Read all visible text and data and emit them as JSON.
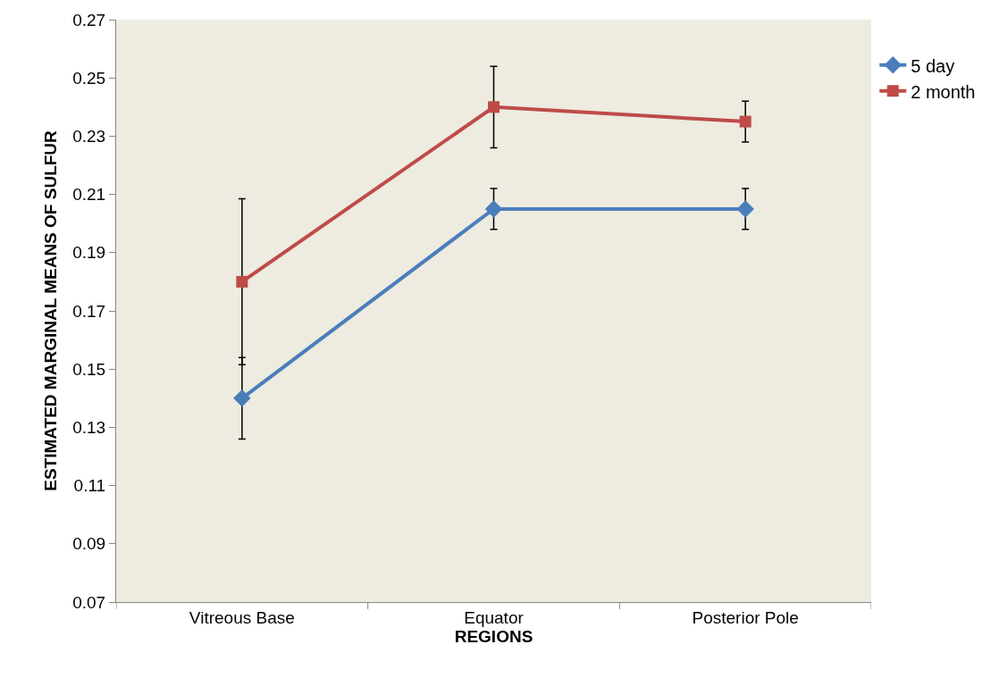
{
  "chart_data": {
    "type": "line",
    "xlabel": "REGIONS",
    "ylabel": "ESTIMATED MARGINAL MEANS OF SULFUR",
    "categories": [
      "Vitreous Base",
      "Equator",
      "Posterior Pole"
    ],
    "series": [
      {
        "name": "5 day",
        "color": "#4a7ebb",
        "marker": "diamond",
        "values": [
          0.14,
          0.205,
          0.205
        ],
        "errors": [
          0.014,
          0.007,
          0.007
        ]
      },
      {
        "name": "2 month",
        "color": "#be4b48",
        "marker": "square",
        "values": [
          0.18,
          0.24,
          0.235
        ],
        "errors": [
          0.0285,
          0.014,
          0.007
        ]
      }
    ],
    "ylim": [
      0.07,
      0.27
    ],
    "yticks": [
      0.07,
      0.09,
      0.11,
      0.13,
      0.15,
      0.17,
      0.19,
      0.21,
      0.23,
      0.25,
      0.27
    ],
    "grid": false,
    "legend": "top right"
  }
}
